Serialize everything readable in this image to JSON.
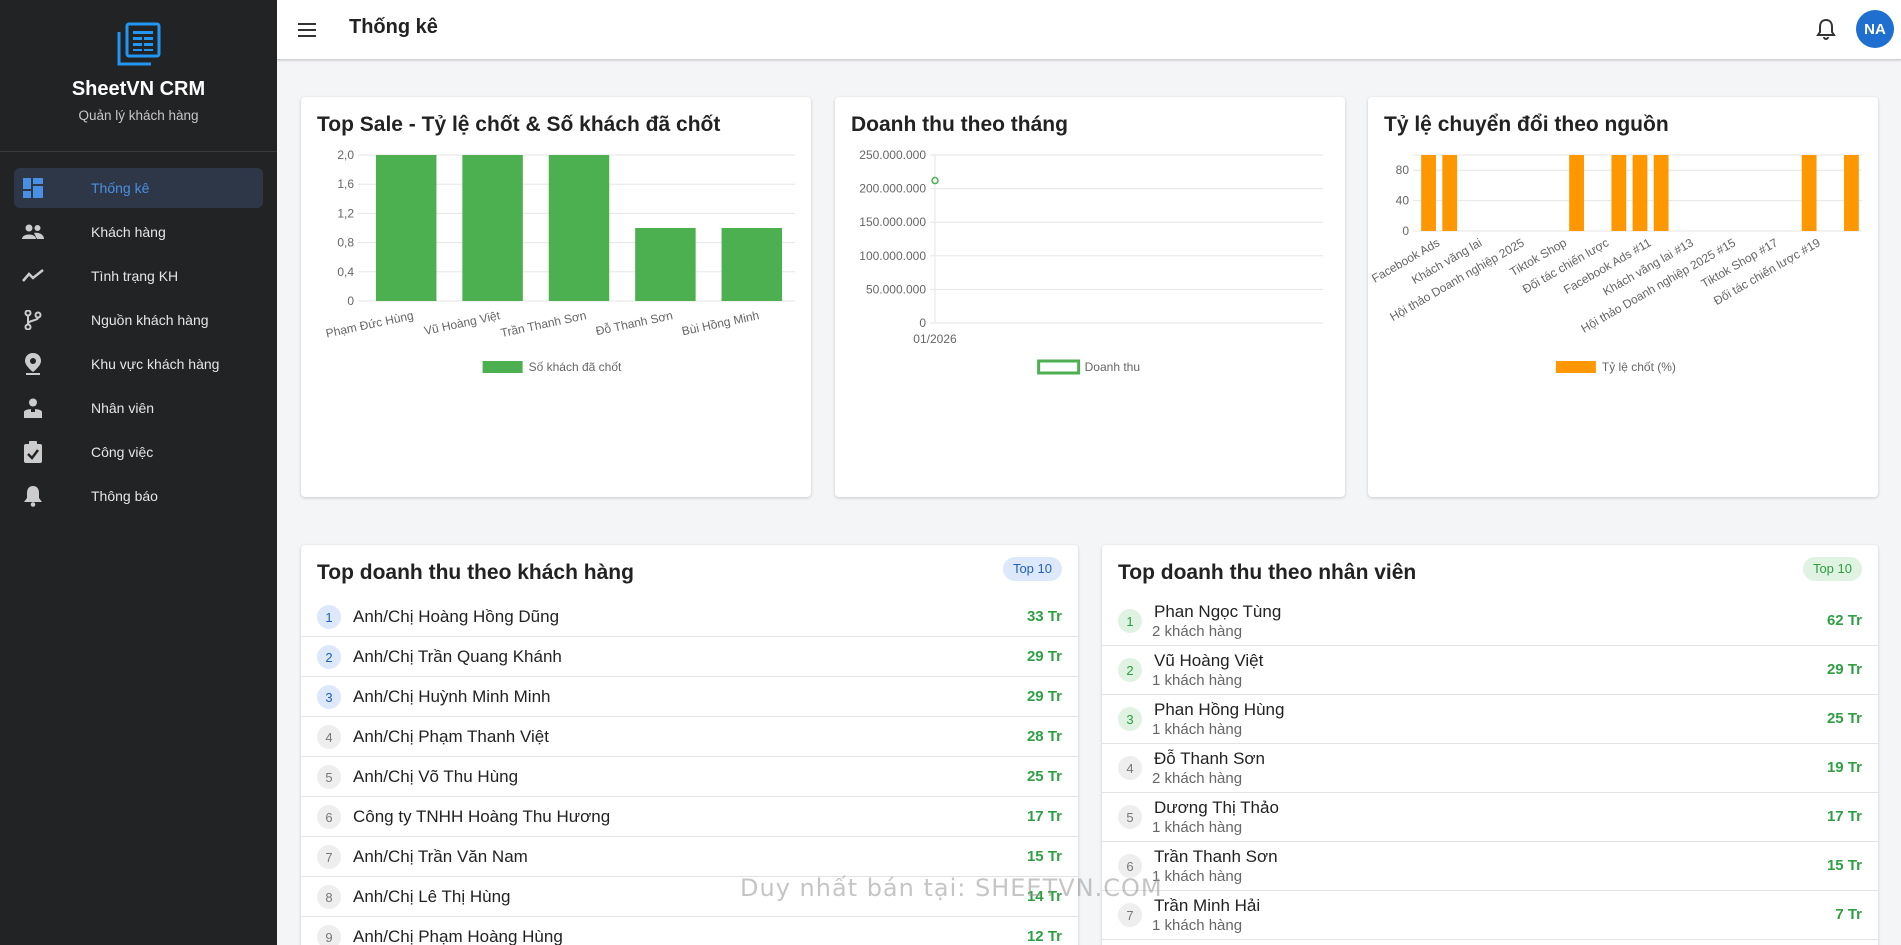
{
  "app": {
    "name": "SheetVN CRM",
    "subtitle": "Quản lý khách hàng"
  },
  "sidebar": {
    "items": [
      {
        "label": "Thống kê",
        "icon": "dashboard-icon",
        "active": true
      },
      {
        "label": "Khách hàng",
        "icon": "people-icon"
      },
      {
        "label": "Tình trạng KH",
        "icon": "trend-icon"
      },
      {
        "label": "Nguồn khách hàng",
        "icon": "branch-icon"
      },
      {
        "label": "Khu vực khách hàng",
        "icon": "location-pin-icon"
      },
      {
        "label": "Nhân viên",
        "icon": "staff-icon"
      },
      {
        "label": "Công việc",
        "icon": "clipboard-check-icon"
      },
      {
        "label": "Thông báo",
        "icon": "bell-icon"
      }
    ]
  },
  "topbar": {
    "title": "Thống kê",
    "avatar": "NA"
  },
  "colors": {
    "sidebar_bg": "#222325",
    "accent": "#4a90e2",
    "green": "#4caf50",
    "orange": "#ff9800"
  },
  "cards": {
    "top_sale_title": "Top Sale - Tỷ lệ chốt & Số khách đã chốt",
    "revenue_month_title": "Doanh thu theo tháng",
    "conversion_title": "Tỷ lệ chuyển đổi theo nguồn",
    "top_customers_title": "Top doanh thu theo khách hàng",
    "top_customers_badge": "Top 10",
    "top_staff_title": "Top doanh thu theo nhân viên",
    "top_staff_badge": "Top 10"
  },
  "chart_data": [
    {
      "type": "bar",
      "categories": [
        "Phạm Đức Hùng",
        "Vũ Hoàng Việt",
        "Trần Thanh Sơn",
        "Đỗ Thanh Sơn",
        "Bùi Hồng Minh"
      ],
      "series": [
        {
          "name": "Số khách đã chốt",
          "values": [
            2,
            2,
            2,
            1,
            1
          ]
        }
      ],
      "ylim": [
        0,
        2
      ],
      "yticks": [
        "0",
        "0,4",
        "0,8",
        "1,2",
        "1,6",
        "2,0"
      ],
      "grid": true,
      "legend": "bottom",
      "color": "#4caf50"
    },
    {
      "type": "line",
      "categories": [
        "01/2026"
      ],
      "series": [
        {
          "name": "Doanh thu",
          "values": [
            212000000
          ]
        }
      ],
      "ylim": [
        0,
        250000000
      ],
      "yticks": [
        "0",
        "50.000.000",
        "100.000.000",
        "150.000.000",
        "200.000.000",
        "250.000.000"
      ],
      "grid": true,
      "legend": "bottom",
      "color": "#4caf50"
    },
    {
      "type": "bar",
      "categories": [
        "Facebook Ads",
        "Khách vãng lai",
        "Hội thảo Doanh nghiệp 2025",
        "Tiktok Shop",
        "Đối tác chiến lược",
        "Facebook Ads #11",
        "Khách vãng lai #13",
        "Hội thảo Doanh nghiệp 2025 #15",
        "Tiktok Shop #17",
        "Đối tác chiến lược #19"
      ],
      "bars": [
        {
          "slot": 0,
          "value": 100
        },
        {
          "slot": 1,
          "value": 100
        },
        {
          "slot": 7,
          "value": 100
        },
        {
          "slot": 9,
          "value": 100
        },
        {
          "slot": 10,
          "value": 100
        },
        {
          "slot": 11,
          "value": 100
        },
        {
          "slot": 18,
          "value": 100
        },
        {
          "slot": 20,
          "value": 100
        }
      ],
      "slots": 21,
      "series": [
        {
          "name": "Tỷ lệ chốt (%)"
        }
      ],
      "ylim": [
        0,
        100
      ],
      "yticks": [
        "0",
        "40",
        "80"
      ],
      "grid": true,
      "legend": "bottom",
      "color": "#ff9800"
    }
  ],
  "top_customers": [
    {
      "rank": "1",
      "name": "Anh/Chị Hoàng Hồng Dũng",
      "amount": "33 Tr"
    },
    {
      "rank": "2",
      "name": "Anh/Chị Trần Quang Khánh",
      "amount": "29 Tr"
    },
    {
      "rank": "3",
      "name": "Anh/Chị Huỳnh Minh Minh",
      "amount": "29 Tr"
    },
    {
      "rank": "4",
      "name": "Anh/Chị Phạm Thanh Việt",
      "amount": "28 Tr"
    },
    {
      "rank": "5",
      "name": "Anh/Chị Võ Thu Hùng",
      "amount": "25 Tr"
    },
    {
      "rank": "6",
      "name": "Công ty TNHH Hoàng Thu Hương",
      "amount": "17 Tr"
    },
    {
      "rank": "7",
      "name": "Anh/Chị Trần Văn Nam",
      "amount": "15 Tr"
    },
    {
      "rank": "8",
      "name": "Anh/Chị Lê Thị Hùng",
      "amount": "14 Tr"
    },
    {
      "rank": "9",
      "name": "Anh/Chị Phạm Hoàng Hùng",
      "amount": "12 Tr"
    }
  ],
  "top_staff": [
    {
      "rank": "1",
      "name": "Phan Ngọc Tùng",
      "sub": "2 khách hàng",
      "amount": "62 Tr"
    },
    {
      "rank": "2",
      "name": "Vũ Hoàng Việt",
      "sub": "1 khách hàng",
      "amount": "29 Tr"
    },
    {
      "rank": "3",
      "name": "Phan Hồng Hùng",
      "sub": "1 khách hàng",
      "amount": "25 Tr"
    },
    {
      "rank": "4",
      "name": "Đỗ Thanh Sơn",
      "sub": "2 khách hàng",
      "amount": "19 Tr"
    },
    {
      "rank": "5",
      "name": "Dương Thị Thảo",
      "sub": "1 khách hàng",
      "amount": "17 Tr"
    },
    {
      "rank": "6",
      "name": "Trần Thanh Sơn",
      "sub": "1 khách hàng",
      "amount": "15 Tr"
    },
    {
      "rank": "7",
      "name": "Trần Minh Hải",
      "sub": "1 khách hàng",
      "amount": "7 Tr"
    }
  ],
  "watermark": "Duy nhất bán tại: SHEETVN.COM"
}
